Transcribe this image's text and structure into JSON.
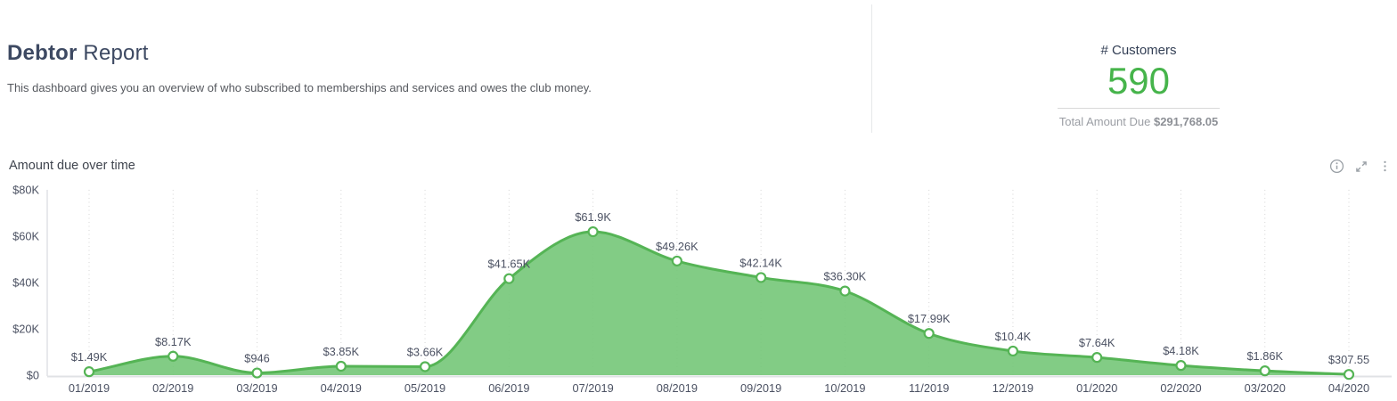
{
  "header": {
    "title_bold": "Debtor",
    "title_rest": "Report",
    "description": "This dashboard gives you an overview of who subscribed to memberships and services and owes the club money."
  },
  "stats": {
    "customers_label": "# Customers",
    "customers_value": "590",
    "customers_value_color": "#46b44b",
    "total_due_label": "Total Amount Due",
    "total_due_value": "$291,768.05"
  },
  "chart": {
    "title": "Amount due over time",
    "icons": [
      {
        "name": "info-icon"
      },
      {
        "name": "expand-icon"
      },
      {
        "name": "kebab-menu-icon"
      }
    ]
  },
  "chart_data": {
    "type": "area",
    "title": "Amount due over time",
    "categories": [
      "01/2019",
      "02/2019",
      "03/2019",
      "04/2019",
      "05/2019",
      "06/2019",
      "07/2019",
      "08/2019",
      "09/2019",
      "10/2019",
      "11/2019",
      "12/2019",
      "01/2020",
      "02/2020",
      "03/2020",
      "04/2020"
    ],
    "values": [
      1490,
      8170,
      946,
      3850,
      3660,
      41650,
      61900,
      49260,
      42140,
      36300,
      17990,
      10400,
      7640,
      4180,
      1860,
      307.55
    ],
    "point_labels": [
      "$1.49K",
      "$8.17K",
      "$946",
      "$3.85K",
      "$3.66K",
      "$41.65K",
      "$61.9K",
      "$49.26K",
      "$42.14K",
      "$36.30K",
      "$17.99K",
      "$10.4K",
      "$7.64K",
      "$4.18K",
      "$1.86K",
      "$307.55"
    ],
    "xlabel": "",
    "ylabel": "",
    "ylim": [
      0,
      80000
    ],
    "y_tick_values": [
      0,
      20000,
      40000,
      60000,
      80000
    ],
    "y_tick_labels": [
      "$0",
      "$20K",
      "$40K",
      "$60K",
      "$80K"
    ],
    "grid": "vertical-dotted",
    "legend": "none",
    "smoothing": "monotone",
    "colors": {
      "area_fill": "#74c678",
      "line": "#55b455",
      "marker_fill": "#ffffff",
      "marker_stroke": "#55b455",
      "grid_line": "#d6d6d6",
      "axis_line": "#e0e2e5",
      "label_text": "#4c5263"
    }
  }
}
